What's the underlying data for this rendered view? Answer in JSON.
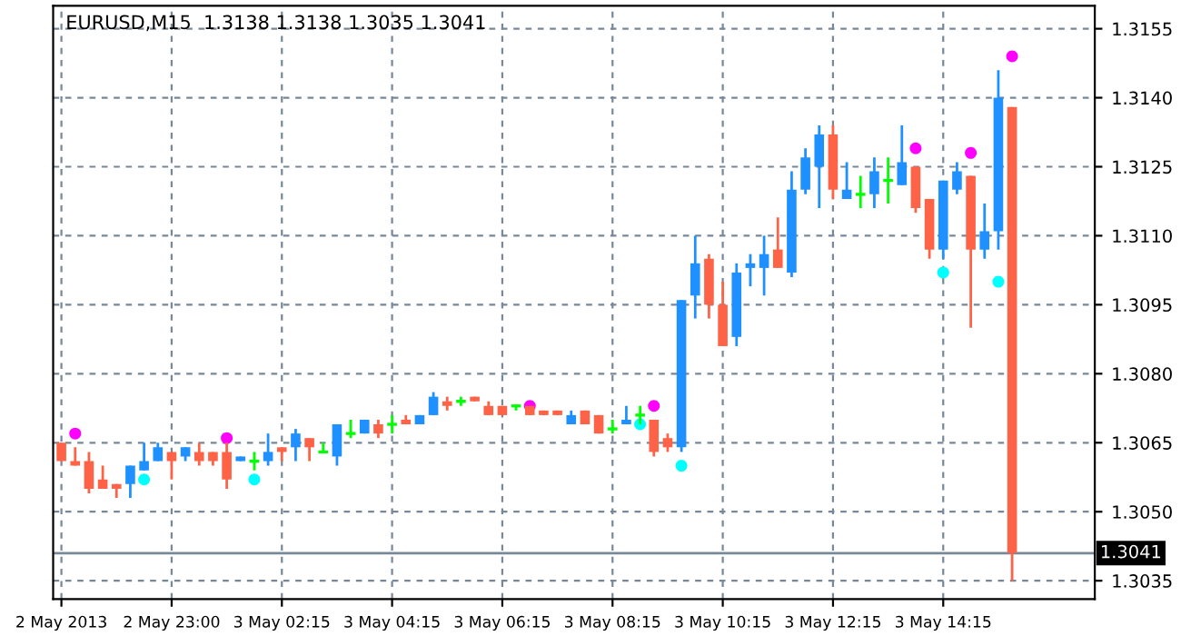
{
  "chart_data": {
    "type": "candlestick",
    "title": "EURUSD,M15  1.3138 1.3138 1.3035 1.3041",
    "categories": [
      "2 May 2013",
      null,
      null,
      null,
      null,
      null,
      null,
      null,
      "2 May 23:00",
      null,
      null,
      null,
      null,
      null,
      null,
      null,
      "3 May 02:15",
      null,
      null,
      null,
      null,
      null,
      null,
      null,
      "3 May 04:15",
      null,
      null,
      null,
      null,
      null,
      null,
      null,
      "3 May 06:15",
      null,
      null,
      null,
      null,
      null,
      null,
      null,
      "3 May 08:15",
      null,
      null,
      null,
      null,
      null,
      null,
      null,
      "3 May 10:15",
      null,
      null,
      null,
      null,
      null,
      null,
      null,
      "3 May 12:15",
      null,
      null,
      null,
      null,
      null,
      null,
      null,
      "3 May 14:15",
      null,
      null,
      null,
      null,
      null
    ],
    "ohlc": [
      [
        1.3065,
        1.3065,
        1.3061,
        1.3061
      ],
      [
        1.3061,
        1.3064,
        1.306,
        1.306
      ],
      [
        1.3061,
        1.3063,
        1.3054,
        1.3055
      ],
      [
        1.3057,
        1.306,
        1.3055,
        1.3055
      ],
      [
        1.3056,
        1.3056,
        1.3053,
        1.3055
      ],
      [
        1.3056,
        1.306,
        1.3053,
        1.306
      ],
      [
        1.3059,
        1.3065,
        1.3059,
        1.3061
      ],
      [
        1.3061,
        1.3065,
        1.3061,
        1.3064
      ],
      [
        1.3063,
        1.3063,
        1.3057,
        1.3061
      ],
      [
        1.3062,
        1.3064,
        1.3061,
        1.3064
      ],
      [
        1.3063,
        1.3065,
        1.306,
        1.3061
      ],
      [
        1.3063,
        1.3063,
        1.306,
        1.3061
      ],
      [
        1.3063,
        1.3065,
        1.3055,
        1.3057
      ],
      [
        1.3061,
        1.3062,
        1.3061,
        1.3062
      ],
      [
        1.3061,
        1.3063,
        1.3059,
        1.3061
      ],
      [
        1.3061,
        1.3067,
        1.306,
        1.3063
      ],
      [
        1.3064,
        1.3064,
        1.3061,
        1.3063
      ],
      [
        1.3064,
        1.3068,
        1.3061,
        1.3067
      ],
      [
        1.3066,
        1.3066,
        1.3061,
        1.3064
      ],
      [
        1.3063,
        1.3065,
        1.3063,
        1.3063
      ],
      [
        1.3062,
        1.3069,
        1.306,
        1.3069
      ],
      [
        1.3067,
        1.307,
        1.3066,
        1.3067
      ],
      [
        1.3067,
        1.307,
        1.3067,
        1.307
      ],
      [
        1.3069,
        1.307,
        1.3066,
        1.3067
      ],
      [
        1.3069,
        1.3071,
        1.3067,
        1.3069
      ],
      [
        1.307,
        1.3071,
        1.3069,
        1.3069
      ],
      [
        1.3069,
        1.3071,
        1.3069,
        1.3071
      ],
      [
        1.3071,
        1.3076,
        1.3071,
        1.3075
      ],
      [
        1.3074,
        1.3075,
        1.3072,
        1.3073
      ],
      [
        1.3074,
        1.3075,
        1.3073,
        1.3074
      ],
      [
        1.3075,
        1.3075,
        1.3074,
        1.3074
      ],
      [
        1.3073,
        1.3074,
        1.3071,
        1.3071
      ],
      [
        1.3073,
        1.3073,
        1.3071,
        1.3071
      ],
      [
        1.3073,
        1.3073,
        1.3072,
        1.3073
      ],
      [
        1.3073,
        1.3073,
        1.3071,
        1.3071
      ],
      [
        1.3072,
        1.3072,
        1.3071,
        1.3071
      ],
      [
        1.3072,
        1.3072,
        1.3071,
        1.3071
      ],
      [
        1.3069,
        1.3072,
        1.3069,
        1.3071
      ],
      [
        1.3072,
        1.3072,
        1.3069,
        1.3069
      ],
      [
        1.3071,
        1.3071,
        1.3067,
        1.3067
      ],
      [
        1.3068,
        1.307,
        1.3067,
        1.3068
      ],
      [
        1.3069,
        1.3073,
        1.3069,
        1.307
      ],
      [
        1.3071,
        1.3073,
        1.3069,
        1.3071
      ],
      [
        1.307,
        1.307,
        1.3062,
        1.3063
      ],
      [
        1.3066,
        1.3067,
        1.3063,
        1.3064
      ],
      [
        1.3064,
        1.3096,
        1.3063,
        1.3096
      ],
      [
        1.3097,
        1.311,
        1.3092,
        1.3104
      ],
      [
        1.3105,
        1.3106,
        1.3092,
        1.3095
      ],
      [
        1.3095,
        1.31,
        1.3086,
        1.3086
      ],
      [
        1.3088,
        1.3104,
        1.3086,
        1.3102
      ],
      [
        1.3103,
        1.3106,
        1.3099,
        1.3104
      ],
      [
        1.3103,
        1.311,
        1.3097,
        1.3106
      ],
      [
        1.3107,
        1.3114,
        1.3103,
        1.3103
      ],
      [
        1.3102,
        1.3124,
        1.3101,
        1.312
      ],
      [
        1.312,
        1.3129,
        1.3119,
        1.3127
      ],
      [
        1.3125,
        1.3134,
        1.3116,
        1.3132
      ],
      [
        1.3132,
        1.3134,
        1.3118,
        1.312
      ],
      [
        1.3118,
        1.3126,
        1.3118,
        1.312
      ],
      [
        1.3119,
        1.3123,
        1.3116,
        1.3119
      ],
      [
        1.3119,
        1.3127,
        1.3116,
        1.3124
      ],
      [
        1.3122,
        1.3127,
        1.3117,
        1.3122
      ],
      [
        1.3121,
        1.3134,
        1.3121,
        1.3126
      ],
      [
        1.3125,
        1.3125,
        1.3115,
        1.3116
      ],
      [
        1.3118,
        1.3118,
        1.3105,
        1.3107
      ],
      [
        1.3107,
        1.3122,
        1.3105,
        1.3122
      ],
      [
        1.312,
        1.3126,
        1.3119,
        1.3124
      ],
      [
        1.3123,
        1.3123,
        1.309,
        1.3107
      ],
      [
        1.3107,
        1.3117,
        1.3105,
        1.3111
      ],
      [
        1.3111,
        1.3146,
        1.3107,
        1.314
      ],
      [
        1.3138,
        1.3138,
        1.3035,
        1.3041
      ]
    ],
    "colors": [
      "#ff6347",
      "#ff6347",
      "#ff6347",
      "#ff6347",
      "#ff6347",
      "#1e90ff",
      "#1e90ff",
      "#1e90ff",
      "#ff6347",
      "#1e90ff",
      "#ff6347",
      "#ff6347",
      "#ff6347",
      "#1e90ff",
      "#00ff00",
      "#1e90ff",
      "#ff6347",
      "#1e90ff",
      "#ff6347",
      "#00ff00",
      "#1e90ff",
      "#00ff00",
      "#1e90ff",
      "#ff6347",
      "#00ff00",
      "#ff6347",
      "#1e90ff",
      "#1e90ff",
      "#ff6347",
      "#00ff00",
      "#ff6347",
      "#ff6347",
      "#ff6347",
      "#00ff00",
      "#ff6347",
      "#ff6347",
      "#ff6347",
      "#1e90ff",
      "#ff6347",
      "#ff6347",
      "#00ff00",
      "#1e90ff",
      "#00ff00",
      "#ff6347",
      "#ff6347",
      "#1e90ff",
      "#1e90ff",
      "#ff6347",
      "#ff6347",
      "#1e90ff",
      "#1e90ff",
      "#1e90ff",
      "#ff6347",
      "#1e90ff",
      "#1e90ff",
      "#1e90ff",
      "#ff6347",
      "#1e90ff",
      "#00ff00",
      "#1e90ff",
      "#00ff00",
      "#1e90ff",
      "#ff6347",
      "#ff6347",
      "#1e90ff",
      "#1e90ff",
      "#ff6347",
      "#1e90ff",
      "#1e90ff",
      "#ff6347"
    ],
    "series": [
      {
        "type": "scatter",
        "color": "#ff00ff",
        "values": [
          null,
          1.3067,
          null,
          null,
          null,
          null,
          null,
          null,
          null,
          null,
          null,
          null,
          1.3066,
          null,
          null,
          null,
          null,
          null,
          null,
          null,
          null,
          null,
          null,
          null,
          null,
          null,
          null,
          null,
          null,
          null,
          null,
          null,
          null,
          null,
          1.3073,
          null,
          null,
          null,
          null,
          null,
          null,
          null,
          null,
          1.3073,
          null,
          null,
          null,
          null,
          null,
          null,
          null,
          null,
          null,
          null,
          null,
          null,
          null,
          null,
          null,
          null,
          null,
          null,
          1.3129,
          null,
          null,
          null,
          1.3128,
          null,
          null,
          1.3149
        ]
      },
      {
        "type": "scatter",
        "color": "#00ffff",
        "values": [
          null,
          null,
          null,
          null,
          null,
          null,
          1.3057,
          null,
          null,
          null,
          null,
          null,
          null,
          null,
          1.3057,
          null,
          null,
          null,
          null,
          null,
          null,
          null,
          null,
          null,
          null,
          null,
          null,
          null,
          null,
          null,
          null,
          null,
          null,
          null,
          null,
          null,
          null,
          null,
          null,
          null,
          null,
          null,
          1.3069,
          null,
          null,
          1.306,
          null,
          null,
          null,
          null,
          null,
          null,
          null,
          null,
          null,
          null,
          null,
          null,
          null,
          null,
          null,
          null,
          null,
          null,
          1.3102,
          null,
          null,
          null,
          1.31,
          null
        ]
      }
    ],
    "marker": "circle",
    "ylim": [
      1.3031,
      1.316
    ],
    "yticks": [
      {
        "value": 1.3035,
        "label": "1.3035"
      },
      {
        "value": 1.305,
        "label": "1.3050"
      },
      {
        "value": 1.3065,
        "label": "1.3065"
      },
      {
        "value": 1.308,
        "label": "1.3080"
      },
      {
        "value": 1.3095,
        "label": "1.3095"
      },
      {
        "value": 1.311,
        "label": "1.3110"
      },
      {
        "value": 1.3125,
        "label": "1.3125"
      },
      {
        "value": 1.314,
        "label": "1.3140"
      },
      {
        "value": 1.3155,
        "label": "1.3155"
      }
    ],
    "ref_lines": [
      {
        "axis": "y",
        "value": 1.3041,
        "label": "1.3041",
        "color": "#778899"
      }
    ],
    "grid": true
  }
}
